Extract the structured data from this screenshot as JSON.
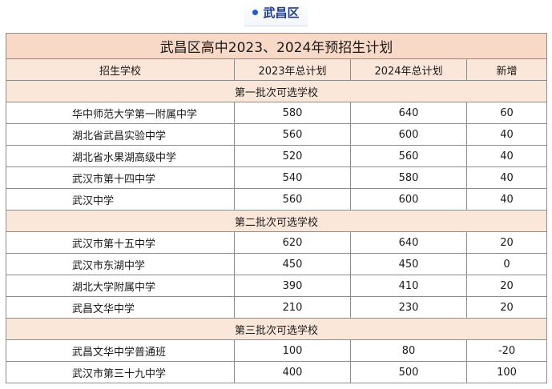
{
  "tag": {
    "label": "武昌区"
  },
  "table": {
    "title": "武昌区高中2023、2024年预招生计划",
    "headers": [
      "招生学校",
      "2023年总计划",
      "2024年总计划",
      "新增"
    ],
    "groups": [
      {
        "label": "第一批次可选学校",
        "rows": [
          [
            "华中师范大学第一附属中学",
            "580",
            "640",
            "60"
          ],
          [
            "湖北省武昌实验中学",
            "560",
            "600",
            "40"
          ],
          [
            "湖北省水果湖高级中学",
            "520",
            "560",
            "40"
          ],
          [
            "武汉市第十四中学",
            "540",
            "580",
            "40"
          ],
          [
            "武汉中学",
            "560",
            "600",
            "40"
          ]
        ]
      },
      {
        "label": "第二批次可选学校",
        "rows": [
          [
            "武汉市第十五中学",
            "620",
            "640",
            "20"
          ],
          [
            "武汉市东湖中学",
            "450",
            "450",
            "0"
          ],
          [
            "湖北大学附属中学",
            "390",
            "410",
            "20"
          ],
          [
            "武昌文华中学",
            "210",
            "230",
            "20"
          ]
        ]
      },
      {
        "label": "第三批次可选学校",
        "rows": [
          [
            "武昌文华中学普通班",
            "100",
            "80",
            "-20"
          ],
          [
            "武汉市第三十九中学",
            "400",
            "500",
            "100"
          ]
        ]
      }
    ]
  }
}
